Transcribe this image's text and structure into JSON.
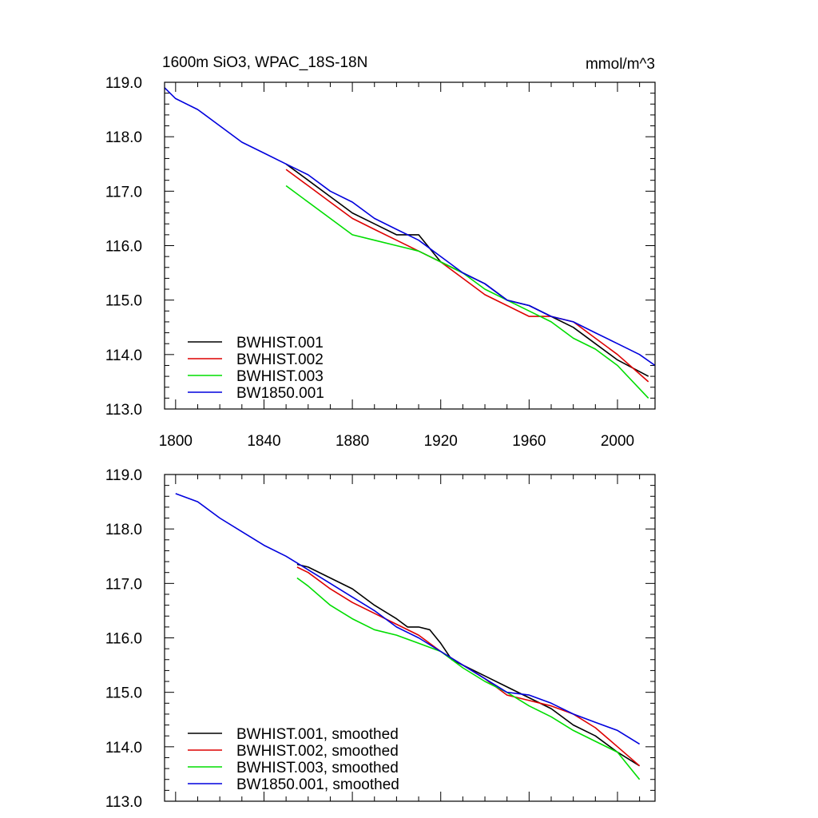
{
  "chart_data": [
    {
      "type": "line",
      "title_left": "1600m SiO3, WPAC_18S-18N",
      "title_right": "mmol/m^3",
      "xlabel": "",
      "ylabel": "",
      "xlim": [
        1795,
        2017
      ],
      "ylim": [
        113.0,
        119.0
      ],
      "x_ticks": [
        1800,
        1840,
        1880,
        1920,
        1960,
        2000
      ],
      "x_tick_labels": [
        "1800",
        "1840",
        "1880",
        "1920",
        "1960",
        "2000"
      ],
      "y_ticks": [
        113,
        114,
        115,
        116,
        117,
        118,
        119
      ],
      "y_tick_labels": [
        "113.0",
        "114.0",
        "115.0",
        "116.0",
        "117.0",
        "118.0",
        "119.0"
      ],
      "legend_position": "bottom-left",
      "series": [
        {
          "name": "BWHIST.001",
          "color": "#000000",
          "x": [
            1850,
            1860,
            1870,
            1880,
            1890,
            1900,
            1910,
            1920,
            1930,
            1940,
            1950,
            1960,
            1970,
            1980,
            1990,
            2000,
            2014
          ],
          "y": [
            117.5,
            117.2,
            116.9,
            116.6,
            116.4,
            116.2,
            116.2,
            115.7,
            115.5,
            115.3,
            115.0,
            114.9,
            114.7,
            114.5,
            114.2,
            113.9,
            113.6
          ]
        },
        {
          "name": "BWHIST.002",
          "color": "#dd0000",
          "x": [
            1850,
            1860,
            1870,
            1880,
            1890,
            1900,
            1910,
            1920,
            1930,
            1940,
            1950,
            1960,
            1970,
            1980,
            1990,
            2000,
            2014
          ],
          "y": [
            117.4,
            117.1,
            116.8,
            116.5,
            116.3,
            116.1,
            115.9,
            115.7,
            115.4,
            115.1,
            114.9,
            114.7,
            114.7,
            114.6,
            114.3,
            114.0,
            113.5
          ]
        },
        {
          "name": "BWHIST.003",
          "color": "#00dd00",
          "x": [
            1850,
            1860,
            1870,
            1880,
            1890,
            1900,
            1910,
            1920,
            1930,
            1940,
            1950,
            1960,
            1970,
            1980,
            1990,
            2000,
            2014
          ],
          "y": [
            117.1,
            116.8,
            116.5,
            116.2,
            116.1,
            116.0,
            115.9,
            115.7,
            115.5,
            115.2,
            115.0,
            114.8,
            114.6,
            114.3,
            114.1,
            113.8,
            113.2
          ]
        },
        {
          "name": "BW1850.001",
          "color": "#0000dd",
          "x": [
            1795,
            1800,
            1810,
            1820,
            1830,
            1840,
            1850,
            1860,
            1870,
            1880,
            1890,
            1900,
            1910,
            1920,
            1930,
            1940,
            1950,
            1960,
            1970,
            1980,
            1990,
            2000,
            2010,
            2017
          ],
          "y": [
            118.9,
            118.7,
            118.5,
            118.2,
            117.9,
            117.7,
            117.5,
            117.3,
            117.0,
            116.8,
            116.5,
            116.3,
            116.1,
            115.8,
            115.5,
            115.3,
            115.0,
            114.9,
            114.7,
            114.6,
            114.4,
            114.2,
            114.0,
            113.8
          ]
        }
      ]
    },
    {
      "type": "line",
      "xlabel": "",
      "ylabel": "",
      "xlim": [
        1795,
        2017
      ],
      "ylim": [
        113.0,
        119.0
      ],
      "x_ticks": [
        1800,
        1840,
        1880,
        1920,
        1960,
        2000
      ],
      "y_ticks": [
        113,
        114,
        115,
        116,
        117,
        118,
        119
      ],
      "y_tick_labels": [
        "113.0",
        "114.0",
        "115.0",
        "116.0",
        "117.0",
        "118.0",
        "119.0"
      ],
      "legend_position": "bottom-left",
      "series": [
        {
          "name": "BWHIST.001, smoothed",
          "color": "#000000",
          "x": [
            1855,
            1860,
            1870,
            1880,
            1890,
            1900,
            1905,
            1910,
            1915,
            1920,
            1925,
            1930,
            1940,
            1950,
            1960,
            1970,
            1980,
            1990,
            2000,
            2010
          ],
          "y": [
            117.35,
            117.3,
            117.1,
            116.9,
            116.6,
            116.35,
            116.2,
            116.2,
            116.15,
            115.9,
            115.6,
            115.5,
            115.3,
            115.1,
            114.9,
            114.7,
            114.4,
            114.2,
            113.9,
            113.65
          ]
        },
        {
          "name": "BWHIST.002, smoothed",
          "color": "#dd0000",
          "x": [
            1855,
            1860,
            1870,
            1880,
            1890,
            1900,
            1910,
            1920,
            1930,
            1940,
            1950,
            1955,
            1960,
            1970,
            1980,
            1990,
            2000,
            2010
          ],
          "y": [
            117.3,
            117.2,
            116.9,
            116.65,
            116.45,
            116.25,
            116.05,
            115.75,
            115.5,
            115.25,
            114.95,
            114.9,
            114.85,
            114.75,
            114.6,
            114.35,
            114.0,
            113.65
          ]
        },
        {
          "name": "BWHIST.003, smoothed",
          "color": "#00dd00",
          "x": [
            1855,
            1860,
            1870,
            1880,
            1890,
            1900,
            1910,
            1920,
            1930,
            1940,
            1950,
            1960,
            1970,
            1980,
            1990,
            2000,
            2005,
            2010
          ],
          "y": [
            117.1,
            116.95,
            116.6,
            116.35,
            116.15,
            116.05,
            115.9,
            115.75,
            115.45,
            115.2,
            115.0,
            114.75,
            114.55,
            114.3,
            114.1,
            113.9,
            113.65,
            113.4
          ]
        },
        {
          "name": "BW1850.001, smoothed",
          "color": "#0000dd",
          "x": [
            1800,
            1810,
            1820,
            1830,
            1840,
            1850,
            1860,
            1870,
            1880,
            1890,
            1900,
            1910,
            1920,
            1930,
            1940,
            1950,
            1960,
            1970,
            1980,
            1990,
            2000,
            2010
          ],
          "y": [
            118.65,
            118.5,
            118.2,
            117.95,
            117.7,
            117.5,
            117.25,
            117.0,
            116.75,
            116.5,
            116.2,
            116.0,
            115.75,
            115.5,
            115.25,
            115.0,
            114.95,
            114.8,
            114.6,
            114.45,
            114.3,
            114.05
          ]
        }
      ]
    }
  ]
}
